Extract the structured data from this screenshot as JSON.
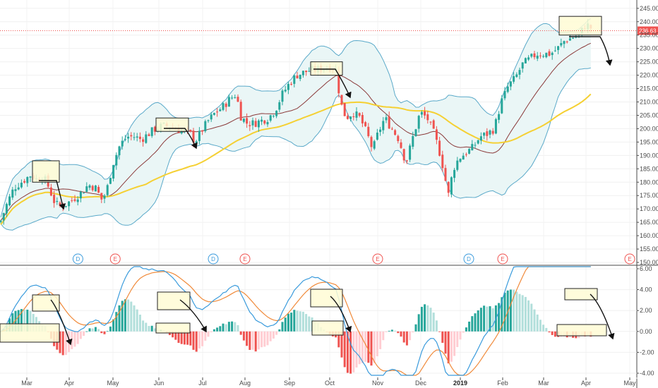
{
  "chart_data": [
    {
      "type": "candlestick",
      "panel": "price",
      "y_axis_ticks": [
        "245.00",
        "240.00",
        "235.00",
        "230.00",
        "225.00",
        "220.00",
        "215.00",
        "210.00",
        "205.00",
        "200.00",
        "195.00",
        "190.00",
        "185.00",
        "180.00",
        "175.00",
        "170.00",
        "165.00",
        "160.00",
        "155.00",
        "150.00"
      ],
      "ylim": [
        150,
        246
      ],
      "last_price_label": "236.63",
      "last_price": 236.63,
      "x_axis_ticks": [
        "Mar",
        "Apr",
        "May",
        "Jun",
        "Jul",
        "Aug",
        "Sep",
        "Oct",
        "Nov",
        "Dec",
        "2019",
        "Feb",
        "Mar",
        "Apr",
        "May"
      ],
      "close_path": [
        [
          0,
          165
        ],
        [
          10,
          172
        ],
        [
          20,
          178
        ],
        [
          30,
          180
        ],
        [
          40,
          182
        ],
        [
          45,
          183
        ],
        [
          50,
          181
        ],
        [
          60,
          182
        ],
        [
          66,
          180
        ],
        [
          72,
          176
        ],
        [
          78,
          172
        ],
        [
          85,
          171
        ],
        [
          95,
          172
        ],
        [
          105,
          174
        ],
        [
          115,
          176
        ],
        [
          125,
          179
        ],
        [
          135,
          178
        ],
        [
          145,
          173
        ],
        [
          152,
          178
        ],
        [
          160,
          187
        ],
        [
          170,
          194
        ],
        [
          180,
          197
        ],
        [
          190,
          197
        ],
        [
          200,
          196
        ],
        [
          210,
          198
        ],
        [
          220,
          200
        ],
        [
          230,
          201
        ],
        [
          240,
          201
        ],
        [
          250,
          200
        ],
        [
          260,
          199
        ],
        [
          270,
          198
        ],
        [
          276,
          195
        ],
        [
          285,
          199
        ],
        [
          295,
          203
        ],
        [
          305,
          206
        ],
        [
          315,
          208
        ],
        [
          325,
          211
        ],
        [
          335,
          213
        ],
        [
          340,
          205
        ],
        [
          350,
          202
        ],
        [
          360,
          202
        ],
        [
          370,
          203
        ],
        [
          380,
          204
        ],
        [
          390,
          207
        ],
        [
          400,
          213
        ],
        [
          410,
          217
        ],
        [
          420,
          220
        ],
        [
          430,
          221
        ],
        [
          440,
          222
        ],
        [
          450,
          222
        ],
        [
          460,
          223
        ],
        [
          470,
          223
        ],
        [
          476,
          222
        ],
        [
          482,
          210
        ],
        [
          490,
          204
        ],
        [
          500,
          206
        ],
        [
          510,
          204
        ],
        [
          520,
          198
        ],
        [
          528,
          192
        ],
        [
          535,
          198
        ],
        [
          545,
          204
        ],
        [
          555,
          200
        ],
        [
          565,
          196
        ],
        [
          575,
          187
        ],
        [
          585,
          197
        ],
        [
          595,
          206
        ],
        [
          605,
          204
        ],
        [
          615,
          198
        ],
        [
          625,
          189
        ],
        [
          635,
          175
        ],
        [
          642,
          185
        ],
        [
          650,
          189
        ],
        [
          660,
          191
        ],
        [
          670,
          193
        ],
        [
          680,
          197
        ],
        [
          690,
          198
        ],
        [
          700,
          200
        ],
        [
          710,
          210
        ],
        [
          720,
          216
        ],
        [
          730,
          219
        ],
        [
          740,
          224
        ],
        [
          750,
          226
        ],
        [
          760,
          228
        ],
        [
          770,
          228
        ],
        [
          780,
          228
        ],
        [
          790,
          230
        ],
        [
          800,
          233
        ],
        [
          810,
          234
        ],
        [
          820,
          235
        ],
        [
          830,
          239
        ],
        [
          836,
          238
        ],
        [
          840,
          236.63
        ]
      ],
      "event_markers": [
        {
          "label": "D",
          "month_pos": 1.2
        },
        {
          "label": "E",
          "month_pos": 2.05
        },
        {
          "label": "D",
          "month_pos": 4.25
        },
        {
          "label": "E",
          "month_pos": 5.0
        },
        {
          "label": "E",
          "month_pos": 8.0
        },
        {
          "label": "D",
          "month_pos": 10.2
        },
        {
          "label": "E",
          "month_pos": 11.0
        },
        {
          "label": "E",
          "month_pos": 14.0
        }
      ],
      "overlays": [
        "Bollinger Bands",
        "20-period average",
        "50-period average"
      ],
      "colors": {
        "up": "#26a69a",
        "down": "#ef5350",
        "band": "#5aa9c9",
        "band_fill": "#eaf6f6",
        "ma_slow": "#f5d033",
        "ma_fast": "#8b3a3a",
        "last_price_line": "#ef5350",
        "highlight_box": "#fffbd5"
      }
    },
    {
      "type": "macd",
      "panel": "indicator",
      "y_axis_ticks": [
        "6.00",
        "4.00",
        "2.00",
        "0.00",
        "-2.00",
        "-4.00"
      ],
      "ylim": [
        -4.2,
        6.2
      ],
      "colors": {
        "macd": "#3a9bdc",
        "signal": "#f08a3a",
        "hist_up_strong": "#26a69a",
        "hist_up_weak": "#b2dfdb",
        "hist_down_strong": "#ef5350",
        "hist_down_weak": "#ffcdd2"
      }
    }
  ]
}
